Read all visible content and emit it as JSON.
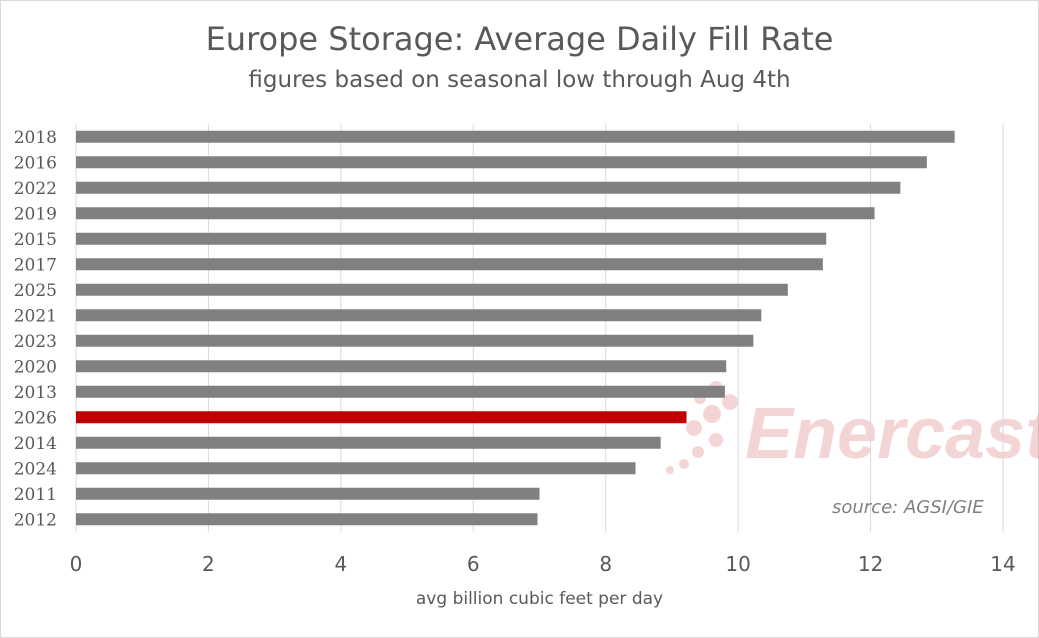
{
  "chart_data": {
    "type": "bar",
    "orientation": "horizontal",
    "title": "Europe Storage:  Average Daily Fill Rate",
    "subtitle": "figures based on seasonal low through Aug 4th",
    "xlabel": "avg billion cubic feet per day",
    "ylabel": "",
    "xlim": [
      0,
      14
    ],
    "xticks": [
      0,
      2,
      4,
      6,
      8,
      10,
      12,
      14
    ],
    "grid": "vertical",
    "categories": [
      "2018",
      "2016",
      "2022",
      "2019",
      "2015",
      "2017",
      "2025",
      "2021",
      "2023",
      "2020",
      "2013",
      "2026",
      "2014",
      "2024",
      "2011",
      "2012"
    ],
    "values": [
      13.27,
      12.85,
      12.45,
      12.06,
      11.33,
      11.28,
      10.75,
      10.35,
      10.23,
      9.82,
      9.8,
      9.22,
      8.83,
      8.45,
      7.0,
      6.97
    ],
    "highlight": "2026",
    "colors": {
      "bar": "#808080",
      "highlight": "#c00000",
      "grid": "#d9d9d9",
      "text": "#595959"
    },
    "source": "source:  AGSI/GIE",
    "watermark": "Enercast"
  }
}
